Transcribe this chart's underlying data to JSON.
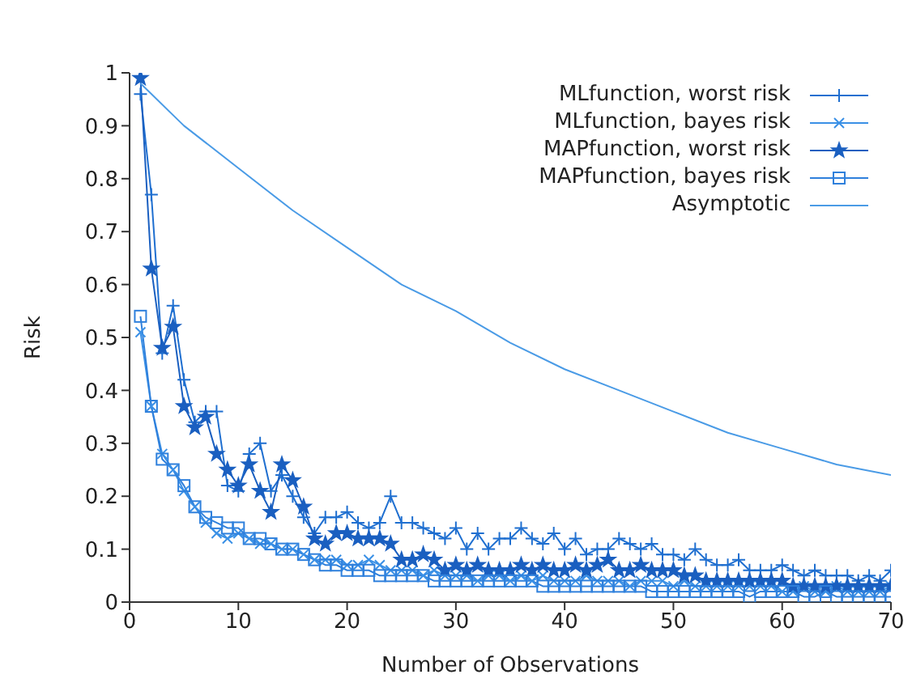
{
  "chart_data": {
    "type": "line",
    "xlabel": "Number of Observations",
    "ylabel": "Risk",
    "xlim": [
      0,
      70
    ],
    "xticks": [
      0,
      10,
      20,
      30,
      40,
      50,
      60,
      70
    ],
    "ylim": [
      0,
      1
    ],
    "yticks": [
      0,
      0.1,
      0.2,
      0.3,
      0.4,
      0.5,
      0.6,
      0.7,
      0.8,
      0.9,
      1
    ],
    "x": [
      1,
      2,
      3,
      4,
      5,
      6,
      7,
      8,
      9,
      10,
      11,
      12,
      13,
      14,
      15,
      16,
      17,
      18,
      19,
      20,
      21,
      22,
      23,
      24,
      25,
      26,
      27,
      28,
      29,
      30,
      31,
      32,
      33,
      34,
      35,
      36,
      37,
      38,
      39,
      40,
      41,
      42,
      43,
      44,
      45,
      46,
      47,
      48,
      49,
      50,
      51,
      52,
      53,
      54,
      55,
      56,
      57,
      58,
      59,
      60,
      61,
      62,
      63,
      64,
      65,
      66,
      67,
      68,
      69,
      70
    ],
    "legend": "top right",
    "grid": false,
    "series": [
      {
        "name": "MLfunction, worst risk",
        "color": "#1f6fd0",
        "marker": "plus",
        "values": [
          0.96,
          0.77,
          0.47,
          0.56,
          0.42,
          0.34,
          0.36,
          0.36,
          0.22,
          0.21,
          0.28,
          0.3,
          0.21,
          0.24,
          0.2,
          0.16,
          0.13,
          0.16,
          0.16,
          0.17,
          0.15,
          0.14,
          0.15,
          0.2,
          0.15,
          0.15,
          0.14,
          0.13,
          0.12,
          0.14,
          0.1,
          0.13,
          0.1,
          0.12,
          0.12,
          0.14,
          0.12,
          0.11,
          0.13,
          0.1,
          0.12,
          0.09,
          0.1,
          0.1,
          0.12,
          0.11,
          0.1,
          0.11,
          0.09,
          0.09,
          0.08,
          0.1,
          0.08,
          0.07,
          0.07,
          0.08,
          0.06,
          0.06,
          0.06,
          0.07,
          0.06,
          0.05,
          0.06,
          0.05,
          0.05,
          0.05,
          0.04,
          0.05,
          0.04,
          0.06
        ]
      },
      {
        "name": "MLfunction, bayes risk",
        "color": "#3a90e6",
        "marker": "cross",
        "values": [
          0.51,
          0.37,
          0.28,
          0.25,
          0.21,
          0.18,
          0.15,
          0.13,
          0.12,
          0.13,
          0.12,
          0.11,
          0.11,
          0.1,
          0.1,
          0.09,
          0.08,
          0.08,
          0.08,
          0.07,
          0.07,
          0.08,
          0.07,
          0.06,
          0.06,
          0.06,
          0.05,
          0.06,
          0.05,
          0.05,
          0.05,
          0.04,
          0.05,
          0.05,
          0.04,
          0.05,
          0.04,
          0.05,
          0.04,
          0.04,
          0.04,
          0.05,
          0.04,
          0.04,
          0.04,
          0.03,
          0.04,
          0.04,
          0.04,
          0.03,
          0.04,
          0.03,
          0.03,
          0.03,
          0.03,
          0.03,
          0.03,
          0.03,
          0.03,
          0.02,
          0.02,
          0.03,
          0.02,
          0.02,
          0.03,
          0.02,
          0.02,
          0.02,
          0.02,
          0.03
        ]
      },
      {
        "name": "MAPfunction, worst risk",
        "color": "#1a5fc0",
        "marker": "star",
        "values": [
          0.99,
          0.63,
          0.48,
          0.52,
          0.37,
          0.33,
          0.35,
          0.28,
          0.25,
          0.22,
          0.26,
          0.21,
          0.17,
          0.26,
          0.23,
          0.18,
          0.12,
          0.11,
          0.13,
          0.13,
          0.12,
          0.12,
          0.12,
          0.11,
          0.08,
          0.08,
          0.09,
          0.08,
          0.06,
          0.07,
          0.06,
          0.07,
          0.06,
          0.06,
          0.06,
          0.07,
          0.06,
          0.07,
          0.06,
          0.06,
          0.07,
          0.06,
          0.07,
          0.08,
          0.06,
          0.06,
          0.07,
          0.06,
          0.06,
          0.06,
          0.05,
          0.05,
          0.04,
          0.04,
          0.04,
          0.04,
          0.04,
          0.04,
          0.04,
          0.04,
          0.03,
          0.03,
          0.03,
          0.03,
          0.03,
          0.03,
          0.03,
          0.03,
          0.03,
          0.03
        ]
      },
      {
        "name": "MAPfunction, bayes risk",
        "color": "#2f80dc",
        "marker": "square",
        "values": [
          0.54,
          0.37,
          0.27,
          0.25,
          0.22,
          0.18,
          0.16,
          0.15,
          0.14,
          0.14,
          0.12,
          0.12,
          0.11,
          0.1,
          0.1,
          0.09,
          0.08,
          0.07,
          0.07,
          0.06,
          0.06,
          0.06,
          0.05,
          0.05,
          0.05,
          0.05,
          0.05,
          0.04,
          0.04,
          0.04,
          0.04,
          0.04,
          0.04,
          0.04,
          0.04,
          0.04,
          0.04,
          0.03,
          0.03,
          0.03,
          0.03,
          0.03,
          0.03,
          0.03,
          0.03,
          0.03,
          0.03,
          0.02,
          0.02,
          0.02,
          0.02,
          0.02,
          0.02,
          0.02,
          0.02,
          0.02,
          0.01,
          0.02,
          0.02,
          0.02,
          0.02,
          0.01,
          0.01,
          0.02,
          0.01,
          0.01,
          0.01,
          0.01,
          0.01,
          0.01
        ]
      },
      {
        "name": "Asymptotic",
        "color": "#4a9be6",
        "marker": "none",
        "x": [
          1,
          5,
          10,
          15,
          20,
          25,
          30,
          35,
          40,
          45,
          50,
          55,
          60,
          65,
          70
        ],
        "values": [
          0.98,
          0.9,
          0.82,
          0.74,
          0.67,
          0.6,
          0.55,
          0.49,
          0.44,
          0.4,
          0.36,
          0.32,
          0.29,
          0.26,
          0.24
        ]
      }
    ]
  }
}
